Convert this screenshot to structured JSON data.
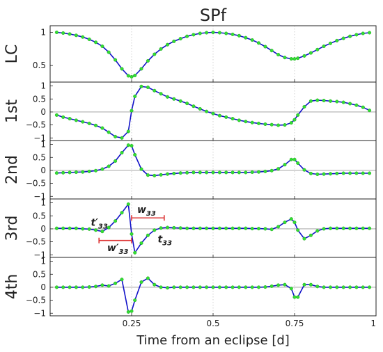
{
  "chart_data": {
    "type": "line",
    "title": "SPf",
    "xlabel": "Time from an eclipse [d]",
    "xlim": [
      0.0,
      1.0
    ],
    "xticks": [
      "0.25",
      "0.5",
      "0.75",
      "1"
    ],
    "xtick_values": [
      0.25,
      0.5,
      0.75,
      1.0
    ],
    "grid": "dotted vertical at 0.25, 0.5, 0.75",
    "colors": {
      "line": "#1010c8",
      "points": "#33dd33",
      "annotation": "#dd3333"
    },
    "panels": [
      {
        "ylabel": "LC",
        "ylim": [
          0.25,
          1.1
        ],
        "yticks": [
          "1",
          "0.5"
        ],
        "ytick_values": [
          1,
          0.5
        ],
        "x": [
          0.02,
          0.04,
          0.06,
          0.08,
          0.1,
          0.12,
          0.14,
          0.16,
          0.18,
          0.2,
          0.22,
          0.24,
          0.25,
          0.26,
          0.28,
          0.3,
          0.32,
          0.34,
          0.36,
          0.38,
          0.4,
          0.42,
          0.44,
          0.46,
          0.48,
          0.5,
          0.52,
          0.54,
          0.56,
          0.58,
          0.6,
          0.62,
          0.64,
          0.66,
          0.68,
          0.7,
          0.72,
          0.74,
          0.75,
          0.76,
          0.78,
          0.8,
          0.82,
          0.84,
          0.86,
          0.88,
          0.9,
          0.92,
          0.94,
          0.96,
          0.98
        ],
        "y": [
          1.0,
          0.99,
          0.975,
          0.955,
          0.93,
          0.895,
          0.85,
          0.79,
          0.7,
          0.585,
          0.45,
          0.345,
          0.33,
          0.35,
          0.45,
          0.57,
          0.67,
          0.75,
          0.815,
          0.865,
          0.905,
          0.94,
          0.965,
          0.985,
          0.995,
          1.0,
          0.995,
          0.985,
          0.97,
          0.95,
          0.92,
          0.885,
          0.84,
          0.785,
          0.725,
          0.665,
          0.62,
          0.6,
          0.6,
          0.61,
          0.645,
          0.69,
          0.74,
          0.79,
          0.835,
          0.875,
          0.91,
          0.94,
          0.965,
          0.985,
          0.995
        ]
      },
      {
        "ylabel": "1st",
        "ylim": [
          -1.1,
          1.15
        ],
        "yticks": [
          "1",
          "0.5",
          "0",
          "−0.5",
          "−1"
        ],
        "ytick_values": [
          1,
          0.5,
          0,
          -0.5,
          -1
        ],
        "x": [
          0.02,
          0.04,
          0.06,
          0.08,
          0.1,
          0.12,
          0.14,
          0.16,
          0.18,
          0.2,
          0.22,
          0.24,
          0.25,
          0.26,
          0.28,
          0.3,
          0.32,
          0.34,
          0.36,
          0.38,
          0.4,
          0.42,
          0.44,
          0.46,
          0.48,
          0.5,
          0.52,
          0.54,
          0.56,
          0.58,
          0.6,
          0.62,
          0.64,
          0.66,
          0.68,
          0.7,
          0.72,
          0.74,
          0.75,
          0.76,
          0.78,
          0.8,
          0.82,
          0.84,
          0.86,
          0.88,
          0.9,
          0.92,
          0.94,
          0.96,
          0.98
        ],
        "y": [
          -0.12,
          -0.2,
          -0.26,
          -0.32,
          -0.38,
          -0.44,
          -0.52,
          -0.62,
          -0.78,
          -0.95,
          -1.0,
          -0.75,
          0.05,
          0.6,
          0.98,
          0.95,
          0.82,
          0.7,
          0.58,
          0.5,
          0.42,
          0.33,
          0.22,
          0.12,
          0.02,
          -0.06,
          -0.14,
          -0.2,
          -0.26,
          -0.32,
          -0.37,
          -0.41,
          -0.44,
          -0.47,
          -0.49,
          -0.51,
          -0.5,
          -0.42,
          -0.3,
          -0.12,
          0.2,
          0.42,
          0.45,
          0.44,
          0.42,
          0.4,
          0.37,
          0.32,
          0.26,
          0.18,
          0.06
        ]
      },
      {
        "ylabel": "2nd",
        "ylim": [
          -1.1,
          1.15
        ],
        "yticks": [
          "1",
          "0.5",
          "0",
          "−0.5",
          "−1"
        ],
        "ytick_values": [
          1,
          0.5,
          0,
          -0.5,
          -1
        ],
        "x": [
          0.02,
          0.04,
          0.06,
          0.08,
          0.1,
          0.12,
          0.14,
          0.16,
          0.18,
          0.2,
          0.22,
          0.24,
          0.25,
          0.26,
          0.28,
          0.3,
          0.32,
          0.34,
          0.36,
          0.38,
          0.4,
          0.42,
          0.44,
          0.46,
          0.48,
          0.5,
          0.52,
          0.54,
          0.56,
          0.58,
          0.6,
          0.62,
          0.64,
          0.66,
          0.68,
          0.7,
          0.72,
          0.74,
          0.75,
          0.76,
          0.78,
          0.8,
          0.82,
          0.84,
          0.86,
          0.88,
          0.9,
          0.92,
          0.94,
          0.96,
          0.98
        ],
        "y": [
          -0.1,
          -0.09,
          -0.08,
          -0.07,
          -0.06,
          -0.04,
          -0.01,
          0.05,
          0.16,
          0.36,
          0.68,
          0.97,
          0.95,
          0.6,
          0.05,
          -0.18,
          -0.2,
          -0.17,
          -0.14,
          -0.12,
          -0.1,
          -0.09,
          -0.08,
          -0.08,
          -0.08,
          -0.08,
          -0.08,
          -0.08,
          -0.08,
          -0.08,
          -0.08,
          -0.07,
          -0.06,
          -0.04,
          -0.01,
          0.06,
          0.22,
          0.42,
          0.42,
          0.28,
          0.02,
          -0.12,
          -0.15,
          -0.14,
          -0.13,
          -0.12,
          -0.11,
          -0.11,
          -0.11,
          -0.11,
          -0.11
        ]
      },
      {
        "ylabel": "3rd",
        "ylim": [
          -1.1,
          1.15
        ],
        "yticks": [
          "1",
          "0.5",
          "0",
          "−0.5",
          "−1"
        ],
        "ytick_values": [
          1,
          0.5,
          0,
          -0.5,
          -1
        ],
        "x": [
          0.02,
          0.04,
          0.06,
          0.08,
          0.1,
          0.12,
          0.14,
          0.16,
          0.18,
          0.2,
          0.22,
          0.24,
          0.25,
          0.26,
          0.28,
          0.3,
          0.32,
          0.34,
          0.36,
          0.38,
          0.4,
          0.42,
          0.44,
          0.46,
          0.48,
          0.5,
          0.52,
          0.54,
          0.56,
          0.58,
          0.6,
          0.62,
          0.64,
          0.66,
          0.68,
          0.7,
          0.72,
          0.74,
          0.75,
          0.76,
          0.78,
          0.8,
          0.82,
          0.84,
          0.86,
          0.88,
          0.9,
          0.92,
          0.94,
          0.96,
          0.98
        ],
        "y": [
          0.02,
          0.02,
          0.02,
          0.02,
          0.0,
          -0.01,
          -0.05,
          -0.1,
          0.05,
          0.3,
          0.62,
          0.95,
          -0.2,
          -0.92,
          -0.55,
          -0.25,
          -0.05,
          0.03,
          0.05,
          0.04,
          0.03,
          0.02,
          0.02,
          0.02,
          0.02,
          0.02,
          0.02,
          0.02,
          0.02,
          0.02,
          0.02,
          0.01,
          0.01,
          0.0,
          -0.02,
          0.08,
          0.25,
          0.38,
          0.25,
          -0.05,
          -0.38,
          -0.25,
          -0.08,
          0.0,
          0.02,
          0.02,
          0.02,
          0.02,
          0.02,
          0.02,
          0.02
        ]
      },
      {
        "ylabel": "4th",
        "ylim": [
          -1.1,
          1.15
        ],
        "yticks": [
          "1",
          "0.5",
          "0",
          "−0.5",
          "−1"
        ],
        "ytick_values": [
          1,
          0.5,
          0,
          -0.5,
          -1
        ],
        "x": [
          0.02,
          0.04,
          0.06,
          0.08,
          0.1,
          0.12,
          0.14,
          0.16,
          0.18,
          0.2,
          0.22,
          0.24,
          0.25,
          0.26,
          0.28,
          0.3,
          0.32,
          0.34,
          0.36,
          0.38,
          0.4,
          0.42,
          0.44,
          0.46,
          0.48,
          0.5,
          0.52,
          0.54,
          0.56,
          0.58,
          0.6,
          0.62,
          0.64,
          0.66,
          0.68,
          0.7,
          0.72,
          0.74,
          0.75,
          0.76,
          0.78,
          0.8,
          0.82,
          0.84,
          0.86,
          0.88,
          0.9,
          0.92,
          0.94,
          0.96,
          0.98
        ],
        "y": [
          0.0,
          0.0,
          0.0,
          0.0,
          0.0,
          0.01,
          0.03,
          0.08,
          0.05,
          0.15,
          0.3,
          -0.95,
          -0.92,
          -0.5,
          0.2,
          0.35,
          0.1,
          0.0,
          -0.02,
          0.0,
          0.0,
          0.0,
          0.0,
          0.0,
          0.0,
          0.0,
          0.0,
          0.0,
          0.0,
          0.0,
          0.0,
          0.0,
          0.0,
          0.01,
          0.04,
          0.08,
          0.1,
          -0.05,
          -0.38,
          -0.38,
          0.1,
          0.1,
          0.03,
          0.0,
          0.0,
          0.0,
          0.0,
          0.0,
          0.0,
          0.0,
          0.0
        ]
      }
    ],
    "annotations": {
      "t_prime": {
        "base": "t",
        "prime": "′",
        "sub": "33"
      },
      "w": {
        "base": "w",
        "sub": "33"
      },
      "w_prime": {
        "base": "w",
        "prime": "′",
        "sub": "33"
      },
      "t": {
        "base": "t",
        "sub": "33"
      },
      "w_interval": [
        0.25,
        0.35
      ],
      "w_prime_interval": [
        0.15,
        0.25
      ]
    }
  }
}
